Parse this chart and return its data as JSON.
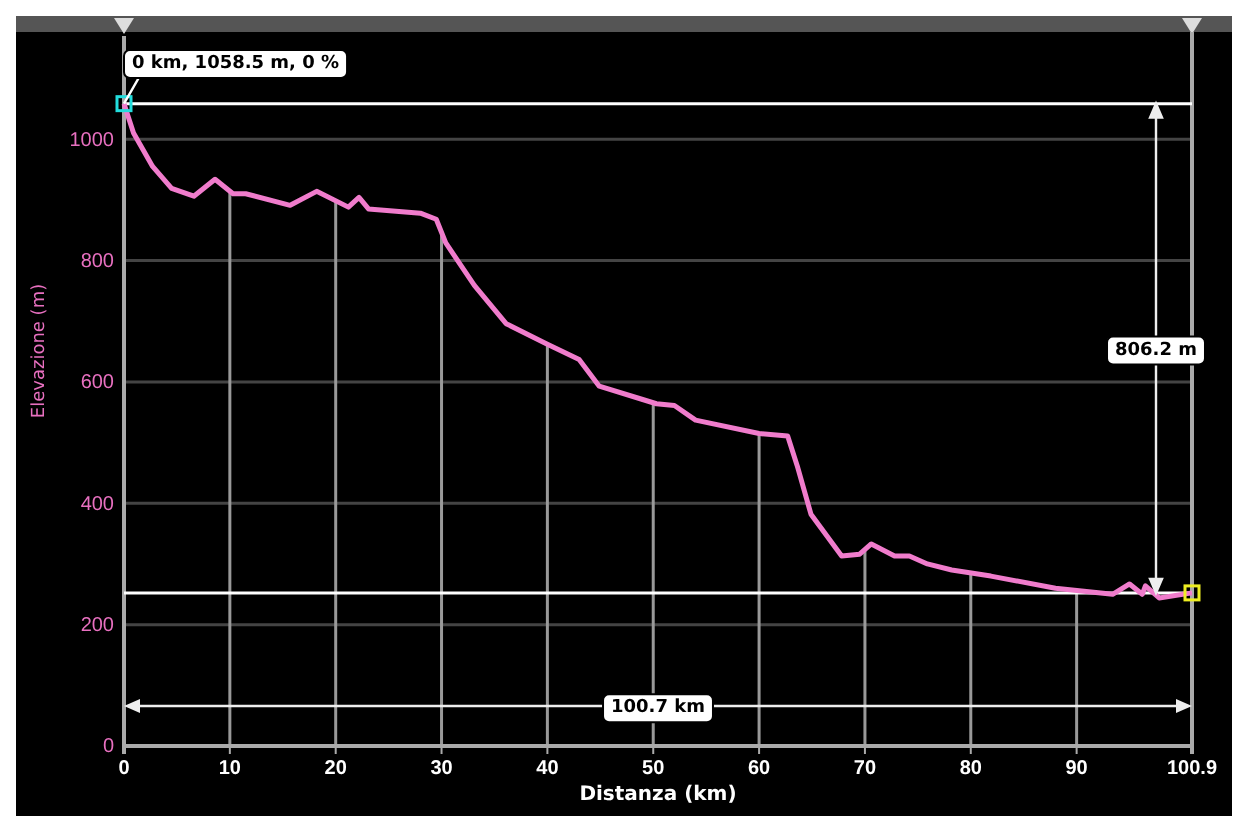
{
  "chart_data": {
    "type": "line",
    "xlabel": "Distanza (km)",
    "ylabel": "Elevazione (m)",
    "x": [
      0,
      0.9,
      2.7,
      4.5,
      6.6,
      8.6,
      10.3,
      11.5,
      15.7,
      18.2,
      21.2,
      22.2,
      23.1,
      28,
      29.5,
      30.4,
      33.1,
      36.1,
      39.9,
      43,
      44.9,
      49,
      50.3,
      52,
      54,
      60,
      62.7,
      63.6,
      64.9,
      67.8,
      69.5,
      70.6,
      72.8,
      74.2,
      75.9,
      78.2,
      81.9,
      88,
      93.4,
      95,
      96.2,
      96.5,
      97.8,
      100.9
    ],
    "series": [
      {
        "color": "#f07ccc",
        "values": [
          1058.5,
          1010,
          955,
          919,
          906,
          934,
          910,
          910,
          891,
          914,
          888,
          904,
          885,
          878,
          868,
          829,
          759,
          696,
          663,
          637,
          593,
          571,
          564,
          561,
          537,
          515,
          511,
          462,
          382,
          313,
          316,
          333,
          313,
          313,
          300,
          290,
          280,
          260,
          250,
          267,
          250,
          264,
          244,
          252.3
        ]
      }
    ],
    "xlim": [
      0,
      100.9
    ],
    "ylim": [
      0,
      1170
    ],
    "xticks": [
      0,
      10,
      20,
      30,
      40,
      50,
      60,
      70,
      80,
      90,
      100.9
    ],
    "yticks": [
      0,
      200,
      400,
      600,
      800,
      1000
    ],
    "grid": true,
    "ref_lines": [
      {
        "axis": "y",
        "value": 1058.5,
        "color": "#ffffff"
      },
      {
        "axis": "y",
        "value": 252.3,
        "color": "#ffffff"
      }
    ],
    "annotations": [
      {
        "text": "0 km, 1058.5 m, 0 %",
        "x": 0,
        "y": 1058.5
      },
      "806.2 m",
      "100.7 km"
    ]
  }
}
